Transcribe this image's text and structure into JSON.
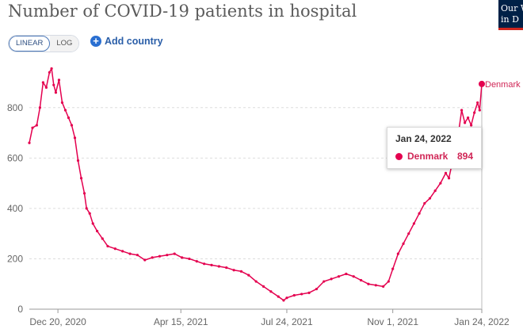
{
  "title": "Number of COVID-19 patients in hospital",
  "logo": {
    "line1": "Our W",
    "line2": "in D"
  },
  "controls": {
    "linear": "LINEAR",
    "log": "LOG",
    "add_country": "Add country"
  },
  "tooltip": {
    "date": "Jan 24, 2022",
    "country": "Denmark",
    "value": "894"
  },
  "colors": {
    "series": "#e4004f",
    "axis": "#666666",
    "grid": "#dddddd"
  },
  "chart_data": {
    "type": "line",
    "title": "Number of COVID-19 patients in hospital",
    "x_scale": "linear",
    "y_scale": "linear",
    "ylim": [
      0,
      900
    ],
    "yticks": [
      0,
      200,
      400,
      600,
      800
    ],
    "ytick_labels": [
      "0",
      "200",
      "400",
      "600",
      "800"
    ],
    "xticks": [
      "2020-12-20",
      "2021-04-15",
      "2021-07-24",
      "2021-11-01",
      "2022-01-24"
    ],
    "xtick_labels": [
      "Dec 20, 2020",
      "Apr 15, 2021",
      "Jul 24, 2021",
      "Nov 1, 2021",
      "Jan 24, 2022"
    ],
    "xlim": [
      "2020-11-23",
      "2022-01-24"
    ],
    "grid": true,
    "series": [
      {
        "name": "Denmark",
        "points": [
          [
            "2020-11-23",
            660
          ],
          [
            "2020-11-26",
            720
          ],
          [
            "2020-11-30",
            730
          ],
          [
            "2020-12-03",
            800
          ],
          [
            "2020-12-06",
            900
          ],
          [
            "2020-12-09",
            880
          ],
          [
            "2020-12-12",
            940
          ],
          [
            "2020-12-14",
            955
          ],
          [
            "2020-12-16",
            890
          ],
          [
            "2020-12-18",
            860
          ],
          [
            "2020-12-21",
            910
          ],
          [
            "2020-12-24",
            820
          ],
          [
            "2020-12-27",
            790
          ],
          [
            "2020-12-30",
            760
          ],
          [
            "2021-01-02",
            730
          ],
          [
            "2021-01-05",
            680
          ],
          [
            "2021-01-08",
            590
          ],
          [
            "2021-01-11",
            520
          ],
          [
            "2021-01-14",
            460
          ],
          [
            "2021-01-16",
            400
          ],
          [
            "2021-01-19",
            380
          ],
          [
            "2021-01-22",
            340
          ],
          [
            "2021-01-26",
            310
          ],
          [
            "2021-01-31",
            280
          ],
          [
            "2021-02-05",
            250
          ],
          [
            "2021-02-12",
            240
          ],
          [
            "2021-02-19",
            230
          ],
          [
            "2021-02-26",
            220
          ],
          [
            "2021-03-05",
            215
          ],
          [
            "2021-03-12",
            195
          ],
          [
            "2021-03-19",
            205
          ],
          [
            "2021-03-26",
            210
          ],
          [
            "2021-04-02",
            215
          ],
          [
            "2021-04-09",
            220
          ],
          [
            "2021-04-16",
            205
          ],
          [
            "2021-04-23",
            200
          ],
          [
            "2021-04-30",
            190
          ],
          [
            "2021-05-07",
            180
          ],
          [
            "2021-05-14",
            175
          ],
          [
            "2021-05-21",
            170
          ],
          [
            "2021-05-28",
            165
          ],
          [
            "2021-06-04",
            155
          ],
          [
            "2021-06-11",
            150
          ],
          [
            "2021-06-18",
            135
          ],
          [
            "2021-06-25",
            110
          ],
          [
            "2021-07-02",
            90
          ],
          [
            "2021-07-09",
            70
          ],
          [
            "2021-07-16",
            50
          ],
          [
            "2021-07-21",
            35
          ],
          [
            "2021-07-24",
            45
          ],
          [
            "2021-07-31",
            55
          ],
          [
            "2021-08-07",
            60
          ],
          [
            "2021-08-14",
            65
          ],
          [
            "2021-08-21",
            80
          ],
          [
            "2021-08-28",
            110
          ],
          [
            "2021-09-04",
            120
          ],
          [
            "2021-09-11",
            130
          ],
          [
            "2021-09-18",
            140
          ],
          [
            "2021-09-25",
            130
          ],
          [
            "2021-10-02",
            115
          ],
          [
            "2021-10-09",
            100
          ],
          [
            "2021-10-16",
            95
          ],
          [
            "2021-10-23",
            90
          ],
          [
            "2021-10-28",
            110
          ],
          [
            "2021-11-01",
            160
          ],
          [
            "2021-11-06",
            220
          ],
          [
            "2021-11-11",
            260
          ],
          [
            "2021-11-16",
            300
          ],
          [
            "2021-11-21",
            340
          ],
          [
            "2021-11-26",
            380
          ],
          [
            "2021-12-01",
            420
          ],
          [
            "2021-12-06",
            440
          ],
          [
            "2021-12-11",
            470
          ],
          [
            "2021-12-16",
            500
          ],
          [
            "2021-12-21",
            540
          ],
          [
            "2021-12-24",
            520
          ],
          [
            "2021-12-27",
            580
          ],
          [
            "2021-12-30",
            650
          ],
          [
            "2022-01-02",
            700
          ],
          [
            "2022-01-05",
            790
          ],
          [
            "2022-01-08",
            740
          ],
          [
            "2022-01-11",
            760
          ],
          [
            "2022-01-14",
            730
          ],
          [
            "2022-01-17",
            780
          ],
          [
            "2022-01-20",
            820
          ],
          [
            "2022-01-22",
            790
          ],
          [
            "2022-01-24",
            894
          ]
        ]
      }
    ]
  }
}
